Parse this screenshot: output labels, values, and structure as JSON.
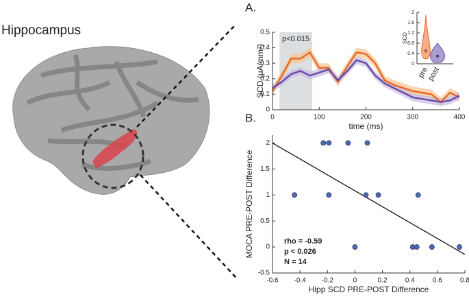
{
  "figure": {
    "title": "Hippocampus"
  },
  "chart_data": [
    {
      "type": "line",
      "panel": "A.",
      "xlabel": "time (ms)",
      "ylabel": "SCD (μA/mm²)",
      "x": [
        0,
        20,
        40,
        60,
        80,
        100,
        120,
        140,
        160,
        180,
        200,
        220,
        240,
        260,
        280,
        300,
        320,
        340,
        360,
        380,
        400
      ],
      "series": [
        {
          "name": "pre",
          "color": "#e8692a",
          "band_color": "#f7c48f",
          "error": 0.03,
          "values": [
            0.12,
            0.22,
            0.33,
            0.33,
            0.37,
            0.27,
            0.27,
            0.18,
            0.28,
            0.37,
            0.36,
            0.3,
            0.19,
            0.16,
            0.14,
            0.12,
            0.11,
            0.1,
            0.05,
            0.11,
            0.08
          ]
        },
        {
          "name": "post",
          "color": "#6a4ca8",
          "band_color": "#c9bce3",
          "error": 0.025,
          "values": [
            0.14,
            0.18,
            0.23,
            0.25,
            0.22,
            0.24,
            0.26,
            0.19,
            0.25,
            0.32,
            0.3,
            0.22,
            0.17,
            0.14,
            0.11,
            0.08,
            0.07,
            0.06,
            0.05,
            0.06,
            0.09
          ]
        }
      ],
      "highlight": {
        "range": [
          15,
          85
        ],
        "label": "p<0.015"
      },
      "xlim": [
        0,
        400
      ],
      "xticks": [
        0,
        100,
        200,
        300,
        400
      ],
      "ylim": [
        0,
        0.5
      ],
      "yticks": [
        0,
        0.1,
        0.2,
        0.3,
        0.4,
        0.5
      ],
      "inset": {
        "type": "violin",
        "ylabel": "SCD",
        "categories": [
          "pre",
          "post"
        ],
        "colors": [
          "#e8692a",
          "#6a4ca8"
        ],
        "min": [
          0.2,
          0.05
        ],
        "max": [
          1.9,
          0.8
        ],
        "median": [
          0.5,
          0.3
        ],
        "ylim": [
          0,
          2
        ],
        "yticks": [
          0,
          0.4,
          0.8,
          1.2,
          1.6,
          2
        ]
      }
    },
    {
      "type": "scatter",
      "panel": "B.",
      "xlabel": "Hipp SCD PRE-POST Difference",
      "ylabel": "MOCA  PRE-POST Difference",
      "color": "#4a68b8",
      "x": [
        -0.23,
        -0.19,
        -0.05,
        0.09,
        -0.44,
        -0.19,
        0.08,
        0.17,
        0.46,
        0.0,
        0.42,
        0.45,
        0.56,
        0.76
      ],
      "values": [
        2,
        2,
        2,
        2,
        1,
        1,
        1,
        1,
        1,
        0,
        0,
        0,
        0,
        0
      ],
      "fit": {
        "slope": -1.53,
        "intercept": 1.08
      },
      "annotations": [
        "rho = -0.59",
        "p <  0.026",
        "N = 14"
      ],
      "xlim": [
        -0.6,
        0.8
      ],
      "xticks": [
        -0.6,
        -0.4,
        -0.2,
        0,
        0.2,
        0.4,
        0.6,
        0.8
      ],
      "ylim": [
        -0.5,
        2.15
      ],
      "yticks": [
        -0.5,
        0,
        0.5,
        1,
        1.5,
        2
      ]
    }
  ]
}
